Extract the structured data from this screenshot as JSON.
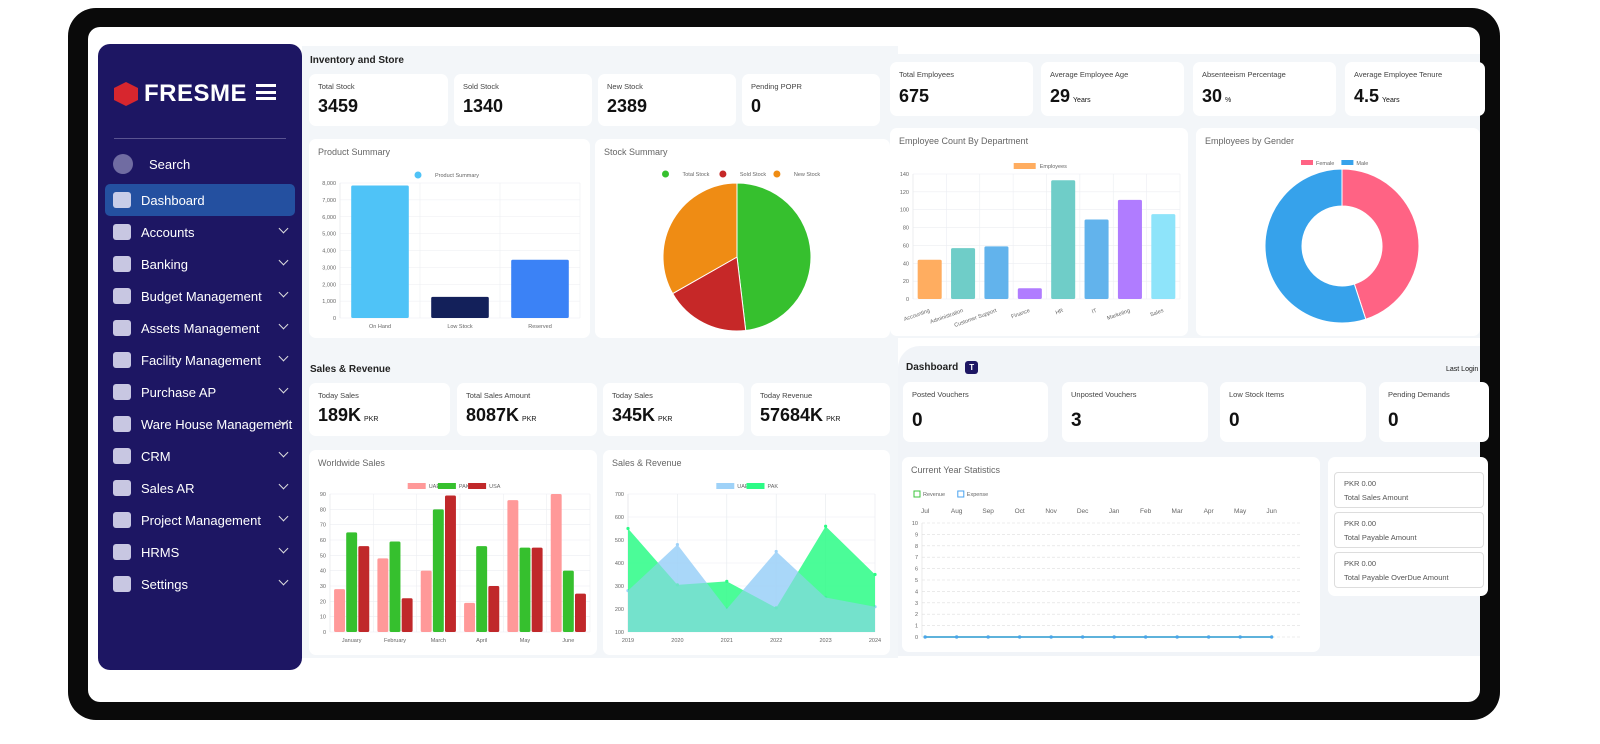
{
  "brand": {
    "name": "FRESME",
    "accent": "#d7262e",
    "sidebar_bg": "#1d1663"
  },
  "sidebar": {
    "items": [
      {
        "label": "Search",
        "icon": "search-icon",
        "chevron": false
      },
      {
        "label": "Dashboard",
        "icon": "dashboard-grid-icon",
        "chevron": false,
        "active": true
      },
      {
        "label": "Accounts",
        "icon": "wallet-icon",
        "chevron": true
      },
      {
        "label": "Banking",
        "icon": "basket-icon",
        "chevron": true
      },
      {
        "label": "Budget Management",
        "icon": "cart-icon",
        "chevron": true
      },
      {
        "label": "Assets Management",
        "icon": "tag-icon",
        "chevron": true
      },
      {
        "label": "Facility Management",
        "icon": "calendar-check-icon",
        "chevron": true
      },
      {
        "label": "Purchase AP",
        "icon": "basket-icon",
        "chevron": true
      },
      {
        "label": "Ware House Management",
        "icon": "checklist-icon",
        "chevron": true
      },
      {
        "label": "CRM",
        "icon": "users-icon",
        "chevron": true
      },
      {
        "label": "Sales AR",
        "icon": "chart-up-icon",
        "chevron": true
      },
      {
        "label": "Project Management",
        "icon": "project-gear-icon",
        "chevron": true
      },
      {
        "label": "HRMS",
        "icon": "card-icon",
        "chevron": true
      },
      {
        "label": "Settings",
        "icon": "gear-icon",
        "chevron": true
      }
    ]
  },
  "inventory": {
    "title": "Inventory and Store",
    "stats": [
      {
        "label": "Total Stock",
        "value": "3459"
      },
      {
        "label": "Sold Stock",
        "value": "1340"
      },
      {
        "label": "New Stock",
        "value": "2389"
      },
      {
        "label": "Pending POPR",
        "value": "0"
      }
    ]
  },
  "hr": {
    "stats": [
      {
        "label": "Total Employees",
        "value": "675",
        "unit": ""
      },
      {
        "label": "Average Employee Age",
        "value": "29",
        "unit": "Years"
      },
      {
        "label": "Absenteeism Percentage",
        "value": "30",
        "unit": "%"
      },
      {
        "label": "Average Employee Tenure",
        "value": "4.5",
        "unit": "Years"
      }
    ]
  },
  "sales": {
    "title": "Sales & Revenue",
    "stats": [
      {
        "label": "Today Sales",
        "value": "189K",
        "unit": "PKR"
      },
      {
        "label": "Total Sales Amount",
        "value": "8087K",
        "unit": "PKR"
      },
      {
        "label": "Today Sales",
        "value": "345K",
        "unit": "PKR"
      },
      {
        "label": "Today Revenue",
        "value": "57684K",
        "unit": "PKR"
      }
    ]
  },
  "dashboard": {
    "title": "Dashboard",
    "badge": "T",
    "last_login": "Last Login",
    "stats": [
      {
        "label": "Posted Vouchers",
        "value": "0"
      },
      {
        "label": "Unposted Vouchers",
        "value": "3"
      },
      {
        "label": "Low Stock Items",
        "value": "0"
      },
      {
        "label": "Pending Demands",
        "value": "0"
      }
    ],
    "amounts": [
      {
        "value": "PKR 0.00",
        "label": "Total Sales Amount"
      },
      {
        "value": "PKR 0.00",
        "label": "Total Payable Amount"
      },
      {
        "value": "PKR 0.00",
        "label": "Total Payable OverDue Amount"
      }
    ]
  },
  "chart_data": [
    {
      "id": "product",
      "type": "bar",
      "title": "Product Summary",
      "categories": [
        "On Hand",
        "Low Stock",
        "Reserved"
      ],
      "series": [
        {
          "name": "Product Summary",
          "values": [
            7850,
            1250,
            3450
          ]
        }
      ],
      "bar_colors": [
        "#4fc3f7",
        "#13205a",
        "#3b82f6"
      ],
      "legend_color": "#4fc3f7",
      "ylim": [
        0,
        8000
      ],
      "ystep": 1000,
      "grid": true,
      "legend": "top"
    },
    {
      "id": "stock",
      "type": "pie",
      "title": "Stock Summary",
      "categories": [
        "Total Stock",
        "Sold Stock",
        "New Stock"
      ],
      "values": [
        3459,
        1340,
        2389
      ],
      "colors": [
        "#36c02e",
        "#c62828",
        "#ef8c14"
      ],
      "legend": "top"
    },
    {
      "id": "dept",
      "type": "bar",
      "title": "Employee Count By Department",
      "categories": [
        "Accounting",
        "Administration",
        "Customer Support",
        "Finance",
        "HR",
        "IT",
        "Marketing",
        "Sales"
      ],
      "series": [
        {
          "name": "Employees",
          "values": [
            44,
            57,
            59,
            12,
            133,
            89,
            111,
            95
          ]
        }
      ],
      "bar_colors": [
        "#ffad60",
        "#6fcdc8",
        "#62b3ec",
        "#b07cff",
        "#6fcdc8",
        "#62b3ec",
        "#b07cff",
        "#8ee4fa"
      ],
      "legend_color": "#ffad60",
      "ylim": [
        0,
        140
      ],
      "ystep": 20,
      "grid": true,
      "legend": "top"
    },
    {
      "id": "gender",
      "type": "donut",
      "title": "Employees by Gender",
      "categories": [
        "Female",
        "Male"
      ],
      "values": [
        45,
        55
      ],
      "colors": [
        "#ff6384",
        "#36a2eb"
      ],
      "legend": "top"
    },
    {
      "id": "world",
      "type": "bar",
      "title": "Worldwide Sales",
      "categories": [
        "January",
        "February",
        "March",
        "April",
        "May",
        "June"
      ],
      "series": [
        {
          "name": "UAE",
          "values": [
            28,
            48,
            40,
            19,
            86,
            90
          ],
          "color": "#ff9999"
        },
        {
          "name": "PAK",
          "values": [
            65,
            59,
            80,
            56,
            55,
            40
          ],
          "color": "#36c02e"
        },
        {
          "name": "USA",
          "values": [
            56,
            22,
            89,
            30,
            55,
            25
          ],
          "color": "#c0282a"
        }
      ],
      "ylim": [
        0,
        90
      ],
      "ystep": 10,
      "grid": true,
      "legend": "top"
    },
    {
      "id": "salesrev",
      "type": "area",
      "title": "Sales & Revenue",
      "categories": [
        "2019",
        "2020",
        "2021",
        "2022",
        "2023",
        "2024"
      ],
      "series": [
        {
          "name": "UAE",
          "values": [
            280,
            480,
            200,
            450,
            250,
            210
          ],
          "color": "#9fd2f8"
        },
        {
          "name": "PAK",
          "values": [
            550,
            305,
            320,
            205,
            560,
            350
          ],
          "color": "#2cfb86"
        }
      ],
      "ylim": [
        100,
        700
      ],
      "ystep": 100,
      "grid": true,
      "legend": "top"
    },
    {
      "id": "yearstats",
      "type": "line",
      "title": "Current Year Statistics",
      "categories": [
        "Jul",
        "Aug",
        "Sep",
        "Oct",
        "Nov",
        "Dec",
        "Jan",
        "Feb",
        "Mar",
        "Apr",
        "May",
        "Jun"
      ],
      "series": [
        {
          "name": "Revenue",
          "values": [
            0,
            0,
            0,
            0,
            0,
            0,
            0,
            0,
            0,
            0,
            0,
            0
          ],
          "color": "#3cc43c"
        },
        {
          "name": "Expense",
          "values": [
            0,
            0,
            0,
            0,
            0,
            0,
            0,
            0,
            0,
            0,
            0,
            0
          ],
          "color": "#4aa3f0"
        }
      ],
      "ylim": [
        0,
        10
      ],
      "ystep": 1,
      "grid": "dashed",
      "legend": "top-left"
    }
  ]
}
